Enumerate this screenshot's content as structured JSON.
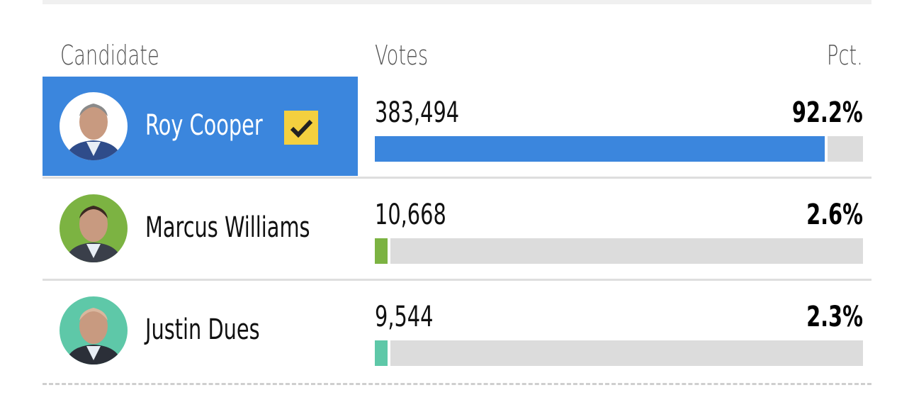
{
  "headers": {
    "candidate": "Candidate",
    "votes": "Votes",
    "pct": "Pct."
  },
  "rows": [
    {
      "name": "Roy Cooper",
      "votes": "383,494",
      "pct": "92.2%",
      "pct_value": 92.2,
      "color": "#3b86dd",
      "winner": true,
      "avatar_bg": "#ffffff"
    },
    {
      "name": "Marcus Williams",
      "votes": "10,668",
      "pct": "2.6%",
      "pct_value": 2.6,
      "color": "#7cb342",
      "winner": false,
      "avatar_bg": "#7cb342"
    },
    {
      "name": "Justin Dues",
      "votes": "9,544",
      "pct": "2.3%",
      "pct_value": 2.3,
      "color": "#5ec8a8",
      "winner": false,
      "avatar_bg": "#5ec8a8"
    }
  ],
  "winner_icon": "check-icon",
  "winner_highlight": "#3b86dd"
}
